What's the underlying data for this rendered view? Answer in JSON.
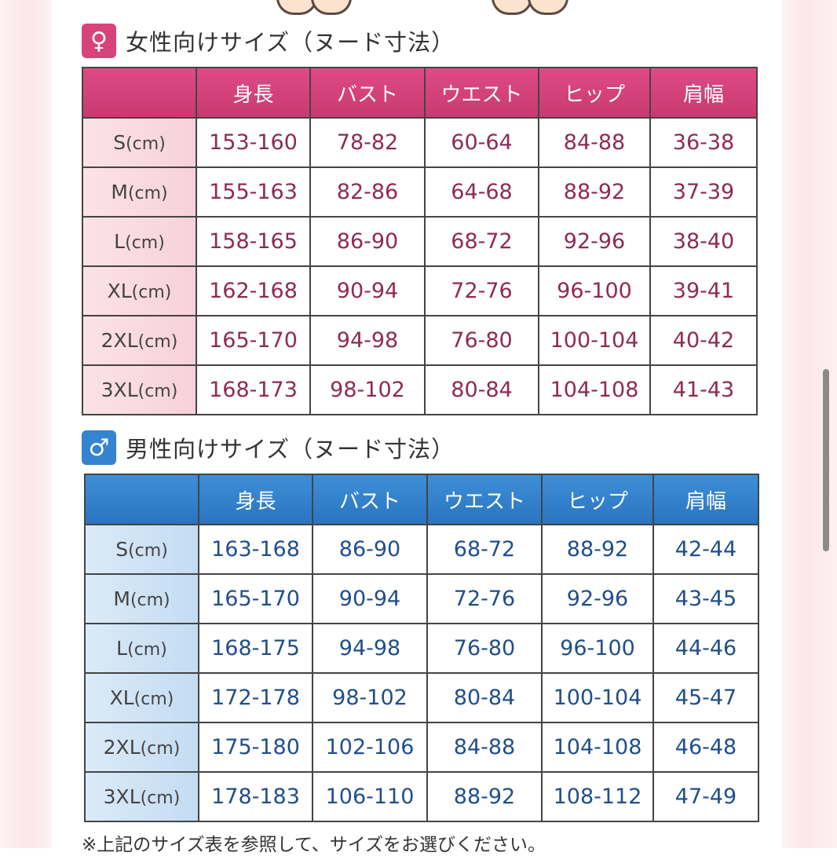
{
  "women": {
    "heading": "女性向けサイズ（ヌード寸法）",
    "icon": "female-symbol-icon",
    "accent": "#d8437c",
    "headers": [
      "",
      "身長",
      "バスト",
      "ウエスト",
      "ヒップ",
      "肩幅"
    ],
    "rows": [
      {
        "size": "S",
        "unit": "(cm)",
        "values": [
          "153-160",
          "78-82",
          "60-64",
          "84-88",
          "36-38"
        ]
      },
      {
        "size": "M",
        "unit": "(cm)",
        "values": [
          "155-163",
          "82-86",
          "64-68",
          "88-92",
          "37-39"
        ]
      },
      {
        "size": "L",
        "unit": "(cm)",
        "values": [
          "158-165",
          "86-90",
          "68-72",
          "92-96",
          "38-40"
        ]
      },
      {
        "size": "XL",
        "unit": "(cm)",
        "values": [
          "162-168",
          "90-94",
          "72-76",
          "96-100",
          "39-41"
        ]
      },
      {
        "size": "2XL",
        "unit": "(cm)",
        "values": [
          "165-170",
          "94-98",
          "76-80",
          "100-104",
          "40-42"
        ]
      },
      {
        "size": "3XL",
        "unit": "(cm)",
        "values": [
          "168-173",
          "98-102",
          "80-84",
          "104-108",
          "41-43"
        ]
      }
    ]
  },
  "men": {
    "heading": "男性向けサイズ（ヌード寸法）",
    "icon": "male-symbol-icon",
    "accent": "#3584d0",
    "headers": [
      "",
      "身長",
      "バスト",
      "ウエスト",
      "ヒップ",
      "肩幅"
    ],
    "rows": [
      {
        "size": "S",
        "unit": "(cm)",
        "values": [
          "163-168",
          "86-90",
          "68-72",
          "88-92",
          "42-44"
        ]
      },
      {
        "size": "M",
        "unit": "(cm)",
        "values": [
          "165-170",
          "90-94",
          "72-76",
          "92-96",
          "43-45"
        ]
      },
      {
        "size": "L",
        "unit": "(cm)",
        "values": [
          "168-175",
          "94-98",
          "76-80",
          "96-100",
          "44-46"
        ]
      },
      {
        "size": "XL",
        "unit": "(cm)",
        "values": [
          "172-178",
          "98-102",
          "80-84",
          "100-104",
          "45-47"
        ]
      },
      {
        "size": "2XL",
        "unit": "(cm)",
        "values": [
          "175-180",
          "102-106",
          "84-88",
          "104-108",
          "46-48"
        ]
      },
      {
        "size": "3XL",
        "unit": "(cm)",
        "values": [
          "178-183",
          "106-110",
          "88-92",
          "108-112",
          "47-49"
        ]
      }
    ]
  },
  "footnote": "※上記のサイズ表を参照して、サイズをお選びください。"
}
